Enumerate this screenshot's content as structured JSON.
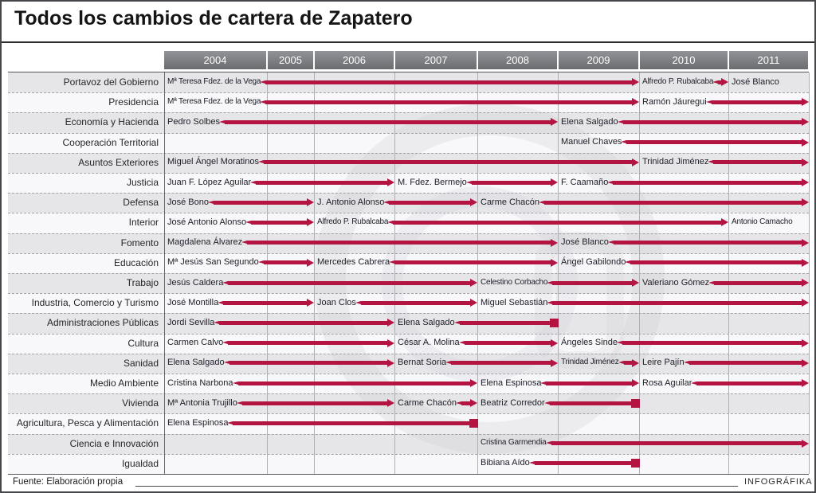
{
  "title": "Todos los cambios de cartera de Zapatero",
  "footer": {
    "source": "Fuente: Elaboración propia",
    "credit": "INFOGRÁFIKA"
  },
  "colors": {
    "arrow_red": "#b31442",
    "header_gradient_top": "#929398",
    "header_gradient_bottom": "#6b6c70",
    "stripe_gray": "#e6e6e9",
    "stripe_white": "#f8f8fa"
  },
  "chart_data": {
    "type": "timeline",
    "title": "Todos los cambios de cartera de Zapatero",
    "years": [
      "2004",
      "2005",
      "2006",
      "2007",
      "2008",
      "2009",
      "2010",
      "2011"
    ],
    "legend_note": "arrow = continues in office, square = portfolio ends",
    "rows": [
      {
        "ministry": "Portavoz del Gobierno",
        "segments": [
          {
            "name": "Mª Teresa Fdez. de la Vega",
            "from": "2004",
            "to": "2010",
            "end": "arrow",
            "c": true
          },
          {
            "name": "Alfredo P. Rubalcaba",
            "from": "2010",
            "to": "2011",
            "end": "arrow",
            "c": true
          },
          {
            "name": "José Blanco",
            "from": "2011",
            "to": null,
            "end": "none"
          }
        ]
      },
      {
        "ministry": "Presidencia",
        "segments": [
          {
            "name": "Mª Teresa Fdez. de la Vega",
            "from": "2004",
            "to": "2010",
            "end": "arrow",
            "c": true
          },
          {
            "name": "Ramón Jáuregui",
            "from": "2010",
            "to": "end",
            "end": "arrow"
          }
        ]
      },
      {
        "ministry": "Economía y Hacienda",
        "segments": [
          {
            "name": "Pedro Solbes",
            "from": "2004",
            "to": "2009",
            "end": "arrow"
          },
          {
            "name": "Elena Salgado",
            "from": "2009",
            "to": "end",
            "end": "arrow"
          }
        ]
      },
      {
        "ministry": "Cooperación Territorial",
        "segments": [
          {
            "name": "Manuel Chaves",
            "from": "2009",
            "to": "end",
            "end": "arrow"
          }
        ]
      },
      {
        "ministry": "Asuntos Exteriores",
        "segments": [
          {
            "name": "Miguel Ángel Moratinos",
            "from": "2004",
            "to": "2010",
            "end": "arrow"
          },
          {
            "name": "Trinidad Jiménez",
            "from": "2010",
            "to": "end",
            "end": "arrow"
          }
        ]
      },
      {
        "ministry": "Justicia",
        "segments": [
          {
            "name": "Juan F. López Aguilar",
            "from": "2004",
            "to": "2007",
            "end": "arrow"
          },
          {
            "name": "M. Fdez. Bermejo",
            "from": "2007",
            "to": "2009",
            "end": "arrow"
          },
          {
            "name": "F. Caamaño",
            "from": "2009",
            "to": "end",
            "end": "arrow"
          }
        ]
      },
      {
        "ministry": "Defensa",
        "segments": [
          {
            "name": "José Bono",
            "from": "2004",
            "to": "2006",
            "end": "arrow"
          },
          {
            "name": "J. Antonio Alonso",
            "from": "2006",
            "to": "2008",
            "end": "arrow"
          },
          {
            "name": "Carme Chacón",
            "from": "2008",
            "to": "end",
            "end": "arrow"
          }
        ]
      },
      {
        "ministry": "Interior",
        "segments": [
          {
            "name": "José Antonio Alonso",
            "from": "2004",
            "to": "2006",
            "end": "arrow"
          },
          {
            "name": "Alfredo P. Rubalcaba",
            "from": "2006",
            "to": "2011",
            "end": "arrow",
            "c": true
          },
          {
            "name": "Antonio Camacho",
            "from": "2011",
            "to": null,
            "end": "none",
            "c": true
          }
        ]
      },
      {
        "ministry": "Fomento",
        "segments": [
          {
            "name": "Magdalena Álvarez",
            "from": "2004",
            "to": "2009",
            "end": "arrow"
          },
          {
            "name": "José Blanco",
            "from": "2009",
            "to": "end",
            "end": "arrow"
          }
        ]
      },
      {
        "ministry": "Educación",
        "segments": [
          {
            "name": "Mª Jesús San Segundo",
            "from": "2004",
            "to": "2006",
            "end": "arrow"
          },
          {
            "name": "Mercedes Cabrera",
            "from": "2006",
            "to": "2009",
            "end": "arrow"
          },
          {
            "name": "Ángel Gabilondo",
            "from": "2009",
            "to": "end",
            "end": "arrow"
          }
        ]
      },
      {
        "ministry": "Trabajo",
        "segments": [
          {
            "name": "Jesús Caldera",
            "from": "2004",
            "to": "2008",
            "end": "arrow"
          },
          {
            "name": "Celestino Corbacho",
            "from": "2008",
            "to": "2010",
            "end": "arrow",
            "c": true
          },
          {
            "name": "Valeriano Gómez",
            "from": "2010",
            "to": "end",
            "end": "arrow"
          }
        ]
      },
      {
        "ministry": "Industria, Comercio y Turismo",
        "segments": [
          {
            "name": "José Montilla",
            "from": "2004",
            "to": "2006",
            "end": "arrow"
          },
          {
            "name": "Joan Clos",
            "from": "2006",
            "to": "2008",
            "end": "arrow"
          },
          {
            "name": "Miguel Sebastián",
            "from": "2008",
            "to": "end",
            "end": "arrow"
          }
        ]
      },
      {
        "ministry": "Administraciones Públicas",
        "segments": [
          {
            "name": "Jordi Sevilla",
            "from": "2004",
            "to": "2007",
            "end": "arrow"
          },
          {
            "name": "Elena Salgado",
            "from": "2007",
            "to": "2009",
            "end": "square"
          }
        ]
      },
      {
        "ministry": "Cultura",
        "segments": [
          {
            "name": "Carmen Calvo",
            "from": "2004",
            "to": "2007",
            "end": "arrow"
          },
          {
            "name": "César A. Molina",
            "from": "2007",
            "to": "2009",
            "end": "arrow"
          },
          {
            "name": "Ángeles Sinde",
            "from": "2009",
            "to": "end",
            "end": "arrow"
          }
        ]
      },
      {
        "ministry": "Sanidad",
        "segments": [
          {
            "name": "Elena Salgado",
            "from": "2004",
            "to": "2007",
            "end": "arrow"
          },
          {
            "name": "Bernat Soria",
            "from": "2007",
            "to": "2009",
            "end": "arrow"
          },
          {
            "name": "Trinidad Jiménez",
            "from": "2009",
            "to": "2010",
            "end": "arrow",
            "c": true
          },
          {
            "name": "Leire Pajín",
            "from": "2010",
            "to": "end",
            "end": "arrow"
          }
        ]
      },
      {
        "ministry": "Medio Ambiente",
        "segments": [
          {
            "name": "Cristina Narbona",
            "from": "2004",
            "to": "2008",
            "end": "arrow"
          },
          {
            "name": "Elena Espinosa",
            "from": "2008",
            "to": "2010",
            "end": "arrow"
          },
          {
            "name": "Rosa Aguilar",
            "from": "2010",
            "to": "end",
            "end": "arrow"
          }
        ]
      },
      {
        "ministry": "Vivienda",
        "segments": [
          {
            "name": "Mª Antonia Trujillo",
            "from": "2004",
            "to": "2007",
            "end": "arrow"
          },
          {
            "name": "Carme Chacón",
            "from": "2007",
            "to": "2008",
            "end": "arrow"
          },
          {
            "name": "Beatriz Corredor",
            "from": "2008",
            "to": "2010",
            "end": "square"
          }
        ]
      },
      {
        "ministry": "Agricultura, Pesca y Alimentación",
        "segments": [
          {
            "name": "Elena Espinosa",
            "from": "2004",
            "to": "2008",
            "end": "square"
          }
        ]
      },
      {
        "ministry": "Ciencia e Innovación",
        "segments": [
          {
            "name": "Cristina Garmendia",
            "from": "2008",
            "to": "end",
            "end": "arrow",
            "c": true
          }
        ]
      },
      {
        "ministry": "Igualdad",
        "segments": [
          {
            "name": "Bibiana Aído",
            "from": "2008",
            "to": "2010",
            "end": "square"
          }
        ]
      }
    ]
  }
}
